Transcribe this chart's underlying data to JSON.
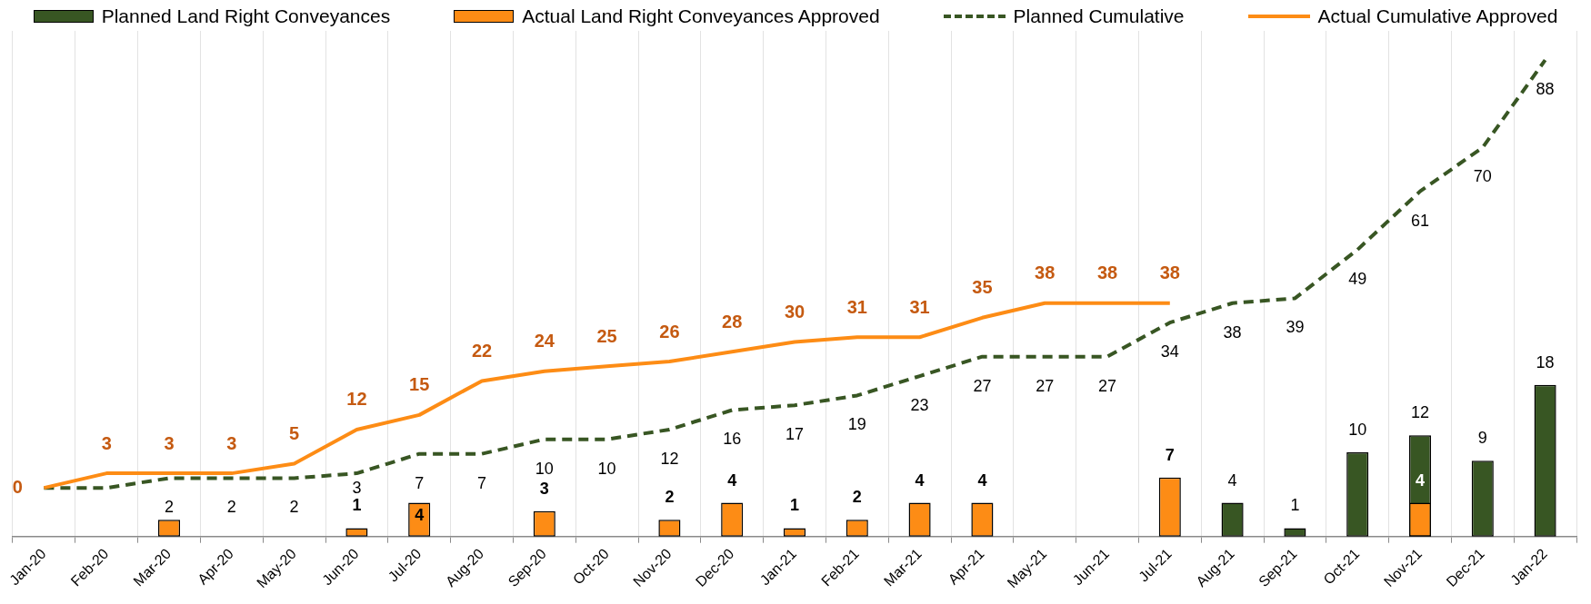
{
  "chart_data": {
    "type": "bar",
    "categories": [
      "Jan-20",
      "Feb-20",
      "Mar-20",
      "Apr-20",
      "May-20",
      "Jun-20",
      "Jul-20",
      "Aug-20",
      "Sep-20",
      "Oct-20",
      "Nov-20",
      "Dec-20",
      "Jan-21",
      "Feb-21",
      "Mar-21",
      "Apr-21",
      "May-21",
      "Jun-21",
      "Jul-21",
      "Aug-21",
      "Sep-21",
      "Oct-21",
      "Nov-21",
      "Dec-21",
      "Jan-22"
    ],
    "series": [
      {
        "name": "Planned Land Right Conveyances",
        "color": "#385623",
        "values": [
          null,
          null,
          null,
          null,
          null,
          null,
          null,
          null,
          null,
          null,
          null,
          null,
          null,
          null,
          null,
          null,
          null,
          null,
          null,
          4,
          1,
          10,
          12,
          9,
          18
        ],
        "value_labels": [
          null,
          null,
          null,
          null,
          null,
          null,
          null,
          null,
          null,
          null,
          null,
          null,
          null,
          null,
          null,
          null,
          null,
          null,
          null,
          "4",
          "1",
          "10",
          "12",
          "9",
          "18"
        ]
      },
      {
        "name": "Actual Land Right Conveyances Approved",
        "color": "#fd8c15",
        "values": [
          null,
          null,
          2,
          null,
          null,
          1,
          4,
          null,
          3,
          null,
          2,
          4,
          1,
          2,
          4,
          4,
          null,
          null,
          7,
          null,
          null,
          null,
          4,
          null,
          null
        ],
        "value_labels": [
          null,
          null,
          null,
          null,
          null,
          "1",
          "4",
          null,
          "3",
          null,
          "2",
          "4",
          "1",
          "2",
          "4",
          "4",
          null,
          null,
          "7",
          null,
          null,
          null,
          "4",
          null,
          null
        ]
      },
      {
        "name": "Planned Cumulative",
        "type": "line",
        "axis": "y2",
        "line_style": "dashed",
        "color": "#385623",
        "values": [
          0,
          0,
          2,
          2,
          2,
          3,
          7,
          7,
          10,
          10,
          12,
          16,
          17,
          19,
          23,
          27,
          27,
          27,
          34,
          38,
          39,
          49,
          61,
          70,
          88
        ],
        "value_labels": [
          null,
          null,
          "2",
          "2",
          "2",
          "3",
          "7",
          "7",
          "10",
          "10",
          "12",
          "16",
          "17",
          "19",
          "23",
          "27",
          "27",
          "27",
          "34",
          "38",
          "39",
          "49",
          "61",
          "70",
          "88"
        ]
      },
      {
        "name": "Actual Cumulative Approved",
        "type": "line",
        "axis": "y2",
        "line_style": "solid",
        "color": "#fd8c15",
        "values": [
          0,
          3,
          3,
          3,
          5,
          12,
          15,
          22,
          24,
          25,
          26,
          28,
          30,
          31,
          31,
          35,
          38,
          38,
          38,
          null,
          null,
          null,
          null,
          null,
          null
        ],
        "value_labels": [
          "0",
          "3",
          "3",
          "3",
          "5",
          "12",
          "15",
          "22",
          "24",
          "25",
          "26",
          "28",
          "30",
          "31",
          "31",
          "35",
          "38",
          "38",
          "38",
          null,
          null,
          null,
          null,
          null,
          null
        ]
      }
    ],
    "ylim": [
      0,
      60
    ],
    "y2lim": [
      -10,
      94
    ],
    "grid": "x",
    "legend": "top",
    "tick_labels": "x",
    "marker": "none"
  }
}
